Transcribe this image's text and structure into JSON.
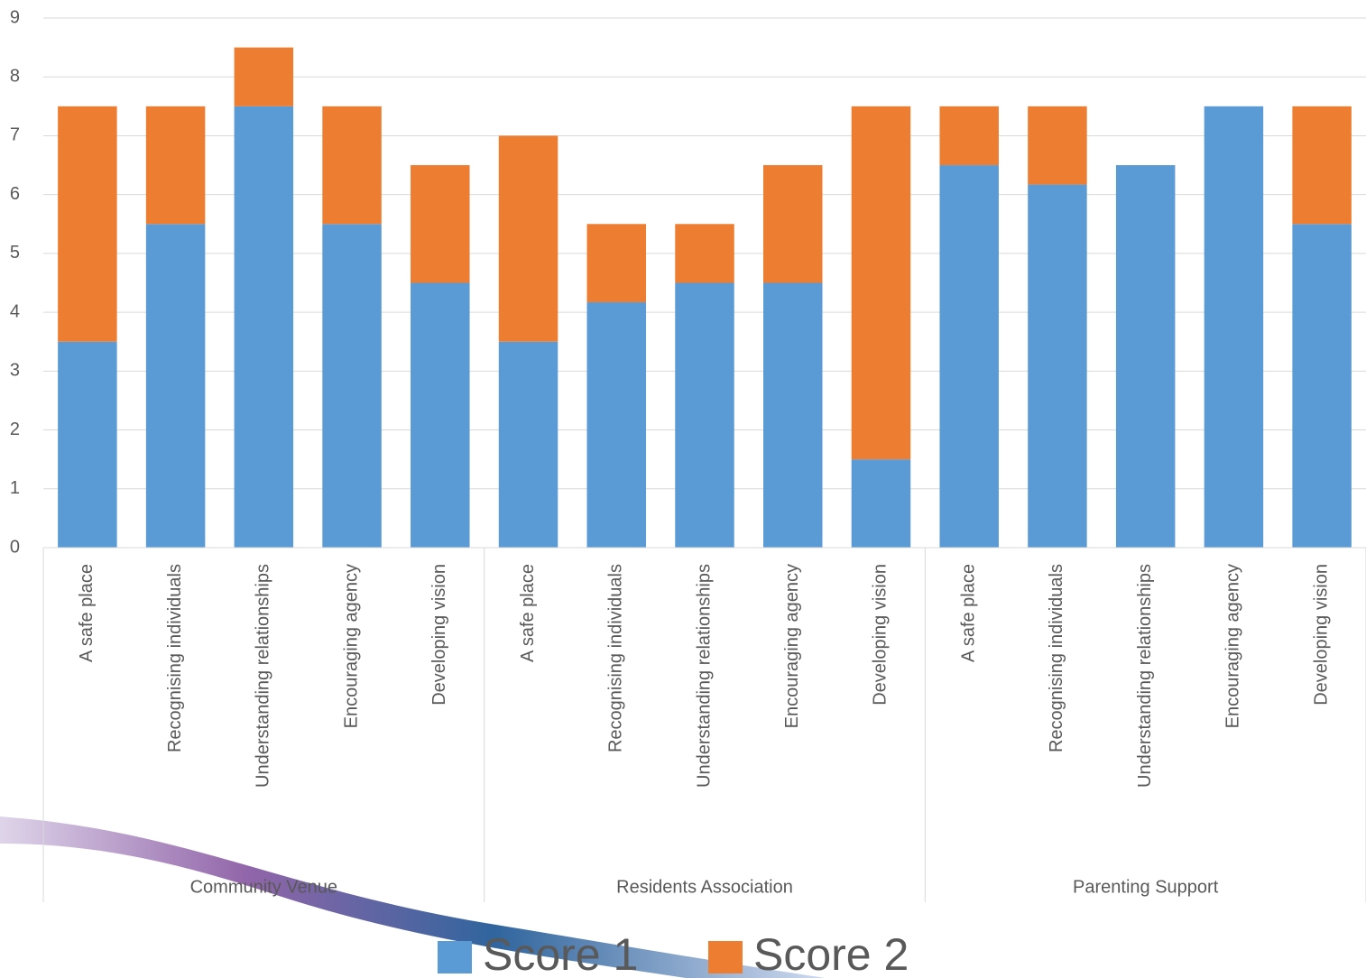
{
  "chart_data": {
    "type": "stacked-bar",
    "groups": [
      {
        "name": "Community Venue",
        "categories": [
          "A safe place",
          "Recognising individuals",
          "Understanding relationships",
          "Encouraging agency",
          "Developing vision"
        ]
      },
      {
        "name": "Residents Association",
        "categories": [
          "A safe place",
          "Recognising individuals",
          "Understanding relationships",
          "Encouraging agency",
          "Developing vision"
        ]
      },
      {
        "name": "Parenting Support",
        "categories": [
          "A safe place",
          "Recognising individuals",
          "Understanding relationships",
          "Encouraging agency",
          "Developing vision"
        ]
      }
    ],
    "series": [
      {
        "name": "Score 1",
        "color": "#5b9bd5",
        "values": [
          3.5,
          5.5,
          7.5,
          5.5,
          4.5,
          3.5,
          4.17,
          4.5,
          4.5,
          1.5,
          6.5,
          6.17,
          6.5,
          7.5,
          5.5
        ]
      },
      {
        "name": "Score 2",
        "color": "#ed7d31",
        "values": [
          4,
          2,
          1,
          2,
          2,
          3.5,
          1.33,
          1,
          2,
          6,
          1,
          1.33,
          0,
          0,
          2
        ]
      }
    ],
    "ylim": [
      0,
      9
    ],
    "yticks": [
      0,
      1,
      2,
      3,
      4,
      5,
      6,
      7,
      8,
      9
    ],
    "grid": true
  }
}
